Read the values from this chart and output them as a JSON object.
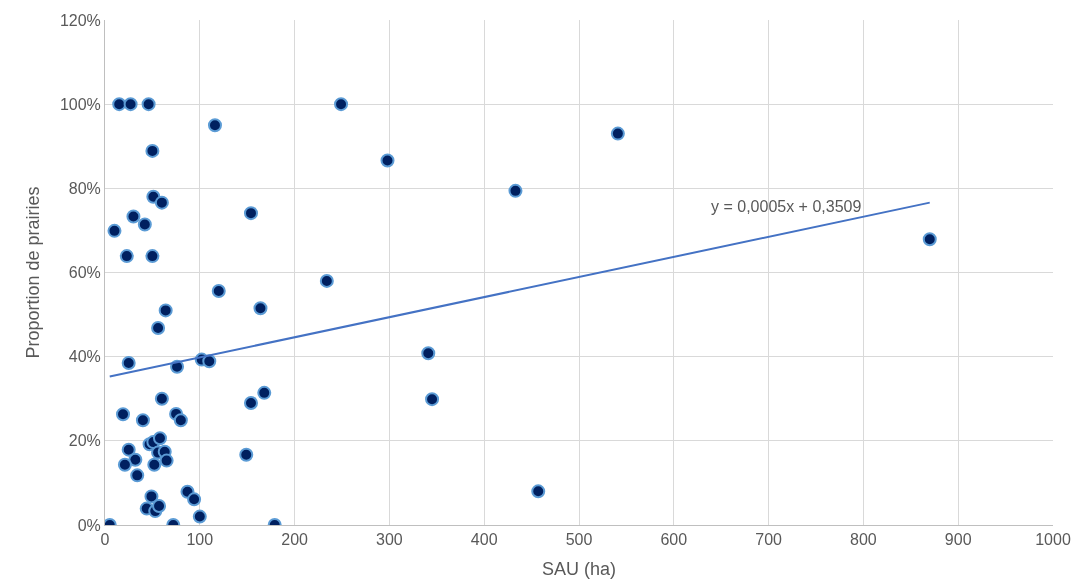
{
  "chart_data": {
    "type": "scatter",
    "xlabel": "SAU (ha)",
    "ylabel": "Proportion de prairies",
    "xlim": [
      0,
      1000
    ],
    "xticks": [
      0,
      100,
      200,
      300,
      400,
      500,
      600,
      700,
      800,
      900,
      1000
    ],
    "ylim": [
      0,
      120
    ],
    "yticks": [
      {
        "value": 0,
        "label": "0%"
      },
      {
        "value": 20,
        "label": "20%"
      },
      {
        "value": 40,
        "label": "40%"
      },
      {
        "value": 60,
        "label": "60%"
      },
      {
        "value": 80,
        "label": "80%"
      },
      {
        "value": 100,
        "label": "100%"
      },
      {
        "value": 120,
        "label": "120%"
      }
    ],
    "grid": true,
    "series": [
      {
        "marker": "circle",
        "color": "#002060",
        "x": [
          64,
          56,
          25,
          76,
          102,
          110,
          60,
          19,
          40,
          75,
          80,
          25,
          32,
          21,
          34,
          47,
          51,
          58,
          56,
          63,
          52,
          65,
          49,
          44,
          53,
          57,
          87,
          94,
          100,
          5,
          72,
          179,
          149,
          154,
          168,
          164,
          120,
          15,
          27,
          46,
          116,
          50,
          51,
          60,
          30,
          42,
          10,
          23,
          50,
          154,
          249,
          298,
          234,
          341,
          345,
          433,
          457,
          541,
          870
        ],
        "values": [
          51,
          46.8,
          38.5,
          37.6,
          39.3,
          38.9,
          30,
          26.3,
          24.9,
          26.4,
          24.9,
          17.9,
          15.5,
          14.3,
          11.8,
          19.2,
          19.7,
          20.6,
          17.2,
          17.4,
          14.3,
          15.3,
          6.8,
          3.9,
          3.3,
          4.5,
          7.9,
          6.1,
          2,
          0,
          0,
          0,
          16.7,
          29,
          31.4,
          51.5,
          55.6,
          100,
          100,
          100,
          95,
          88.9,
          78,
          76.6,
          73.3,
          71.4,
          69.9,
          63.9,
          63.9,
          74.1,
          100,
          86.6,
          58,
          40.8,
          29.9,
          79.4,
          8,
          93,
          67.9
        ]
      },
      {
        "type": "line",
        "marker": "none",
        "color": "#4472c4",
        "x": [
          5,
          870
        ],
        "values": [
          35.3,
          76.6
        ]
      }
    ],
    "annotations": [
      "y = 0,0005x + 0,3509"
    ]
  }
}
